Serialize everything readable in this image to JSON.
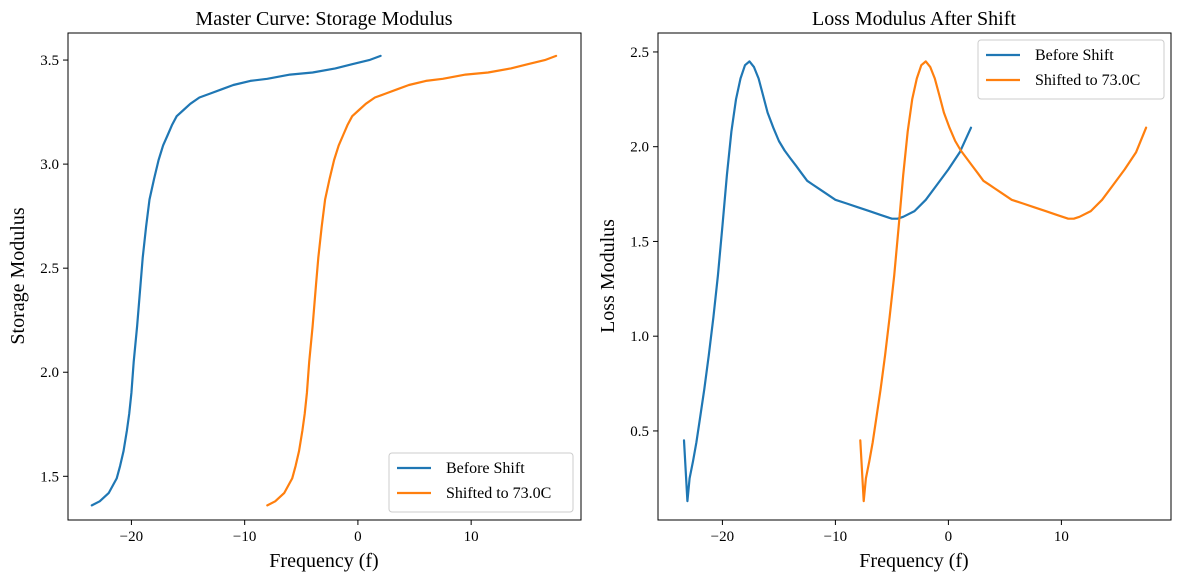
{
  "figure": {
    "background": "#ffffff"
  },
  "chart_data": [
    {
      "type": "line",
      "title": "Master Curve: Storage Modulus",
      "xlabel": "Frequency (f)",
      "ylabel": "Storage Modulus",
      "xlim": [
        -25.6,
        19.7
      ],
      "ylim": [
        1.29,
        3.63
      ],
      "xticks": [
        -20,
        -10,
        0,
        10
      ],
      "xtick_labels": [
        "−20",
        "−10",
        "0",
        "10"
      ],
      "yticks": [
        1.5,
        2.0,
        2.5,
        3.0,
        3.5
      ],
      "ytick_labels": [
        "1.5",
        "2.0",
        "2.5",
        "3.0",
        "3.5"
      ],
      "grid": false,
      "legend_position": "lower-right",
      "series": [
        {
          "name": "Before Shift",
          "color": "#1f77b4",
          "x": [
            -23.5,
            -22.8,
            -22.0,
            -21.3,
            -21.0,
            -20.7,
            -20.4,
            -20.2,
            -20.0,
            -19.8,
            -19.5,
            -19.2,
            -19.0,
            -18.7,
            -18.4,
            -18.0,
            -17.6,
            -17.2,
            -16.8,
            -16.4,
            -16.0,
            -15.4,
            -14.8,
            -14.0,
            -13.0,
            -12.0,
            -11.0,
            -9.5,
            -8.0,
            -6.0,
            -4.0,
            -2.0,
            -0.5,
            1.0,
            2.0
          ],
          "y": [
            1.36,
            1.38,
            1.42,
            1.49,
            1.55,
            1.62,
            1.72,
            1.8,
            1.9,
            2.05,
            2.22,
            2.42,
            2.55,
            2.7,
            2.83,
            2.93,
            3.02,
            3.09,
            3.14,
            3.19,
            3.23,
            3.26,
            3.29,
            3.32,
            3.34,
            3.36,
            3.38,
            3.4,
            3.41,
            3.43,
            3.44,
            3.46,
            3.48,
            3.5,
            3.52
          ]
        },
        {
          "name": "Shifted to 73.0C",
          "color": "#ff7f0e",
          "x": [
            -8.0,
            -7.3,
            -6.5,
            -5.8,
            -5.5,
            -5.2,
            -4.9,
            -4.7,
            -4.5,
            -4.3,
            -4.0,
            -3.7,
            -3.5,
            -3.2,
            -2.9,
            -2.5,
            -2.1,
            -1.7,
            -1.3,
            -0.9,
            -0.5,
            0.1,
            0.7,
            1.5,
            2.5,
            3.5,
            4.5,
            6.0,
            7.5,
            9.5,
            11.5,
            13.5,
            15.0,
            16.5,
            17.5
          ],
          "y": [
            1.36,
            1.38,
            1.42,
            1.49,
            1.55,
            1.62,
            1.72,
            1.8,
            1.9,
            2.05,
            2.22,
            2.42,
            2.55,
            2.7,
            2.83,
            2.93,
            3.02,
            3.09,
            3.14,
            3.19,
            3.23,
            3.26,
            3.29,
            3.32,
            3.34,
            3.36,
            3.38,
            3.4,
            3.41,
            3.43,
            3.44,
            3.46,
            3.48,
            3.5,
            3.52
          ]
        }
      ]
    },
    {
      "type": "line",
      "title": "Loss Modulus After Shift",
      "xlabel": "Frequency (f)",
      "ylabel": "Loss Modulus",
      "xlim": [
        -25.7,
        19.7
      ],
      "ylim": [
        0.03,
        2.6
      ],
      "xticks": [
        -20,
        -10,
        0,
        10
      ],
      "xtick_labels": [
        "−20",
        "−10",
        "0",
        "10"
      ],
      "yticks": [
        0.5,
        1.0,
        1.5,
        2.0,
        2.5
      ],
      "ytick_labels": [
        "0.5",
        "1.0",
        "1.5",
        "2.0",
        "2.5"
      ],
      "grid": false,
      "legend_position": "top-right",
      "series": [
        {
          "name": "Before Shift",
          "color": "#1f77b4",
          "x": [
            -23.4,
            -23.1,
            -22.9,
            -22.6,
            -22.3,
            -22.0,
            -21.6,
            -21.2,
            -20.8,
            -20.4,
            -20.0,
            -19.6,
            -19.2,
            -18.8,
            -18.4,
            -18.0,
            -17.6,
            -17.2,
            -16.8,
            -16.4,
            -16.0,
            -15.5,
            -15.0,
            -14.5,
            -14.0,
            -13.5,
            -13.0,
            -12.5,
            -12.0,
            -11.5,
            -11.0,
            -10.0,
            -9.0,
            -8.0,
            -7.0,
            -6.0,
            -5.0,
            -4.5,
            -4.0,
            -3.0,
            -2.0,
            -1.0,
            0.0,
            1.0,
            2.0
          ],
          "y": [
            0.45,
            0.13,
            0.25,
            0.34,
            0.44,
            0.56,
            0.72,
            0.9,
            1.1,
            1.32,
            1.58,
            1.85,
            2.08,
            2.25,
            2.36,
            2.43,
            2.45,
            2.42,
            2.36,
            2.27,
            2.18,
            2.1,
            2.03,
            1.98,
            1.94,
            1.9,
            1.86,
            1.82,
            1.8,
            1.78,
            1.76,
            1.72,
            1.7,
            1.68,
            1.66,
            1.64,
            1.62,
            1.62,
            1.63,
            1.66,
            1.72,
            1.8,
            1.88,
            1.97,
            2.1
          ]
        },
        {
          "name": "Shifted to 73.0C",
          "color": "#ff7f0e",
          "x": [
            -7.8,
            -7.5,
            -7.3,
            -7.0,
            -6.7,
            -6.4,
            -6.0,
            -5.6,
            -5.2,
            -4.8,
            -4.4,
            -4.0,
            -3.6,
            -3.2,
            -2.8,
            -2.4,
            -2.0,
            -1.6,
            -1.2,
            -0.8,
            -0.4,
            0.1,
            0.6,
            1.1,
            1.6,
            2.1,
            2.6,
            3.1,
            3.6,
            4.1,
            4.6,
            5.6,
            6.6,
            7.6,
            8.6,
            9.6,
            10.6,
            11.1,
            11.6,
            12.6,
            13.6,
            14.6,
            15.6,
            16.6,
            17.5
          ],
          "y": [
            0.45,
            0.13,
            0.25,
            0.34,
            0.44,
            0.56,
            0.72,
            0.9,
            1.1,
            1.32,
            1.58,
            1.85,
            2.08,
            2.25,
            2.36,
            2.43,
            2.45,
            2.42,
            2.36,
            2.27,
            2.18,
            2.1,
            2.03,
            1.98,
            1.94,
            1.9,
            1.86,
            1.82,
            1.8,
            1.78,
            1.76,
            1.72,
            1.7,
            1.68,
            1.66,
            1.64,
            1.62,
            1.62,
            1.63,
            1.66,
            1.72,
            1.8,
            1.88,
            1.97,
            2.1
          ]
        }
      ]
    }
  ]
}
